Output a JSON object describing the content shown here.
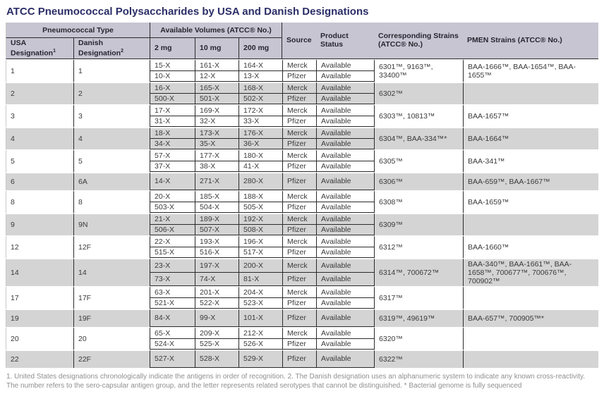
{
  "title": "ATCC Pneumococcal Polysaccharides by USA and Danish Designations",
  "table": {
    "header": {
      "pneumococcal_type": "Pneumococcal Type",
      "usa": "USA Designation",
      "usa_sup": "1",
      "danish": "Danish Designation",
      "danish_sup": "2",
      "volumes": "Available Volumes (ATCC® No.)",
      "v2": "2 mg",
      "v10": "10 mg",
      "v200": "200 mg",
      "source": "Source",
      "status": "Product Status",
      "strains": "Corresponding Strains (ATCC® No.)",
      "pmen": "PMEN Strains (ATCC® No.)"
    },
    "colors": {
      "title_text": "#2b2e67",
      "header_band": "#c7c5d2",
      "shaded_row": "#d4d4d4",
      "grid_line": "#2b2b2b",
      "body_text": "#3a3a3a",
      "footnote_text": "#8f8f8f"
    },
    "groups": [
      {
        "usa": "1",
        "danish": "1",
        "shaded": false,
        "strains": "6301™, 9163™, 33400™",
        "pmen": "BAA-1666™, BAA-1654™, BAA-1655™",
        "rows": [
          {
            "v2": "15-X",
            "v10": "161-X",
            "v200": "164-X",
            "source": "Merck",
            "status": "Available"
          },
          {
            "v2": "10-X",
            "v10": "12-X",
            "v200": "13-X",
            "source": "Pfizer",
            "status": "Available"
          }
        ]
      },
      {
        "usa": "2",
        "danish": "2",
        "shaded": true,
        "strains": "6302™",
        "pmen": "",
        "rows": [
          {
            "v2": "16-X",
            "v10": "165-X",
            "v200": "168-X",
            "source": "Merck",
            "status": "Available"
          },
          {
            "v2": "500-X",
            "v10": "501-X",
            "v200": "502-X",
            "source": "Pfizer",
            "status": "Available"
          }
        ]
      },
      {
        "usa": "3",
        "danish": "3",
        "shaded": false,
        "strains": "6303™, 10813™",
        "pmen": "BAA-1657™",
        "rows": [
          {
            "v2": "17-X",
            "v10": "169-X",
            "v200": "172-X",
            "source": "Merck",
            "status": "Available"
          },
          {
            "v2": "31-X",
            "v10": "32-X",
            "v200": "33-X",
            "source": "Pfizer",
            "status": "Available"
          }
        ]
      },
      {
        "usa": "4",
        "danish": "4",
        "shaded": true,
        "strains": "6304™, BAA-334™*",
        "pmen": "BAA-1664™",
        "rows": [
          {
            "v2": "18-X",
            "v10": "173-X",
            "v200": "176-X",
            "source": "Merck",
            "status": "Available"
          },
          {
            "v2": "34-X",
            "v10": "35-X",
            "v200": "36-X",
            "source": "Pfizer",
            "status": "Available"
          }
        ]
      },
      {
        "usa": "5",
        "danish": "5",
        "shaded": false,
        "strains": "6305™",
        "pmen": "BAA-341™",
        "rows": [
          {
            "v2": "57-X",
            "v10": "177-X",
            "v200": "180-X",
            "source": "Merck",
            "status": "Available"
          },
          {
            "v2": "37-X",
            "v10": "38-X",
            "v200": "41-X",
            "source": "Pfizer",
            "status": "Available"
          }
        ]
      },
      {
        "usa": "6",
        "danish": "6A",
        "shaded": true,
        "strains": "6306™",
        "pmen": "BAA-659™, BAA-1667™",
        "rows": [
          {
            "v2": "14-X",
            "v10": "271-X",
            "v200": "280-X",
            "source": "Pfizer",
            "status": "Available"
          }
        ]
      },
      {
        "usa": "8",
        "danish": "8",
        "shaded": false,
        "strains": "6308™",
        "pmen": "BAA-1659™",
        "rows": [
          {
            "v2": "20-X",
            "v10": "185-X",
            "v200": "188-X",
            "source": "Merck",
            "status": "Available"
          },
          {
            "v2": "503-X",
            "v10": "504-X",
            "v200": "505-X",
            "source": "Pfizer",
            "status": "Available"
          }
        ]
      },
      {
        "usa": "9",
        "danish": "9N",
        "shaded": true,
        "strains": "6309™",
        "pmen": "",
        "rows": [
          {
            "v2": "21-X",
            "v10": "189-X",
            "v200": "192-X",
            "source": "Merck",
            "status": "Available"
          },
          {
            "v2": "506-X",
            "v10": "507-X",
            "v200": "508-X",
            "source": "Pfizer",
            "status": "Available"
          }
        ]
      },
      {
        "usa": "12",
        "danish": "12F",
        "shaded": false,
        "strains": "6312™",
        "pmen": "BAA-1660™",
        "rows": [
          {
            "v2": "22-X",
            "v10": "193-X",
            "v200": "196-X",
            "source": "Merck",
            "status": "Available"
          },
          {
            "v2": "515-X",
            "v10": "516-X",
            "v200": "517-X",
            "source": "Pfizer",
            "status": "Available"
          }
        ]
      },
      {
        "usa": "14",
        "danish": "14",
        "shaded": true,
        "strains": "6314™, 700672™",
        "pmen": "BAA-340™, BAA-1661™, BAA-1658™, 700677™, 700676™, 700902™",
        "rows": [
          {
            "v2": "23-X",
            "v10": "197-X",
            "v200": "200-X",
            "source": "Merck",
            "status": "Available"
          },
          {
            "v2": "73-X",
            "v10": "74-X",
            "v200": "81-X",
            "source": "Pfizer",
            "status": "Available"
          }
        ]
      },
      {
        "usa": "17",
        "danish": "17F",
        "shaded": false,
        "strains": "6317™",
        "pmen": "",
        "rows": [
          {
            "v2": "63-X",
            "v10": "201-X",
            "v200": "204-X",
            "source": "Merck",
            "status": "Available"
          },
          {
            "v2": "521-X",
            "v10": "522-X",
            "v200": "523-X",
            "source": "Pfizer",
            "status": "Available"
          }
        ]
      },
      {
        "usa": "19",
        "danish": "19F",
        "shaded": true,
        "strains": "6319™, 49619™",
        "pmen": "BAA-657™, 700905™*",
        "rows": [
          {
            "v2": "84-X",
            "v10": "99-X",
            "v200": "101-X",
            "source": "Pfizer",
            "status": "Available"
          }
        ]
      },
      {
        "usa": "20",
        "danish": "20",
        "shaded": false,
        "strains": "6320™",
        "pmen": "",
        "rows": [
          {
            "v2": "65-X",
            "v10": "209-X",
            "v200": "212-X",
            "source": "Merck",
            "status": "Available"
          },
          {
            "v2": "524-X",
            "v10": "525-X",
            "v200": "526-X",
            "source": "Pfizer",
            "status": "Available"
          }
        ]
      },
      {
        "usa": "22",
        "danish": "22F",
        "shaded": true,
        "strains": "6322™",
        "pmen": "",
        "rows": [
          {
            "v2": "527-X",
            "v10": "528-X",
            "v200": "529-X",
            "source": "Pfizer",
            "status": "Available"
          }
        ]
      }
    ]
  },
  "footnote": "1. United States designations chronologically indicate the antigens in order of recognition. 2. The Danish designation uses an alphanumeric system to indicate any known cross-reactivity. The number refers to the sero-capsular antigen group, and the letter represents related serotypes that  cannot be distinguished. * Bacterial genome is fully sequenced"
}
